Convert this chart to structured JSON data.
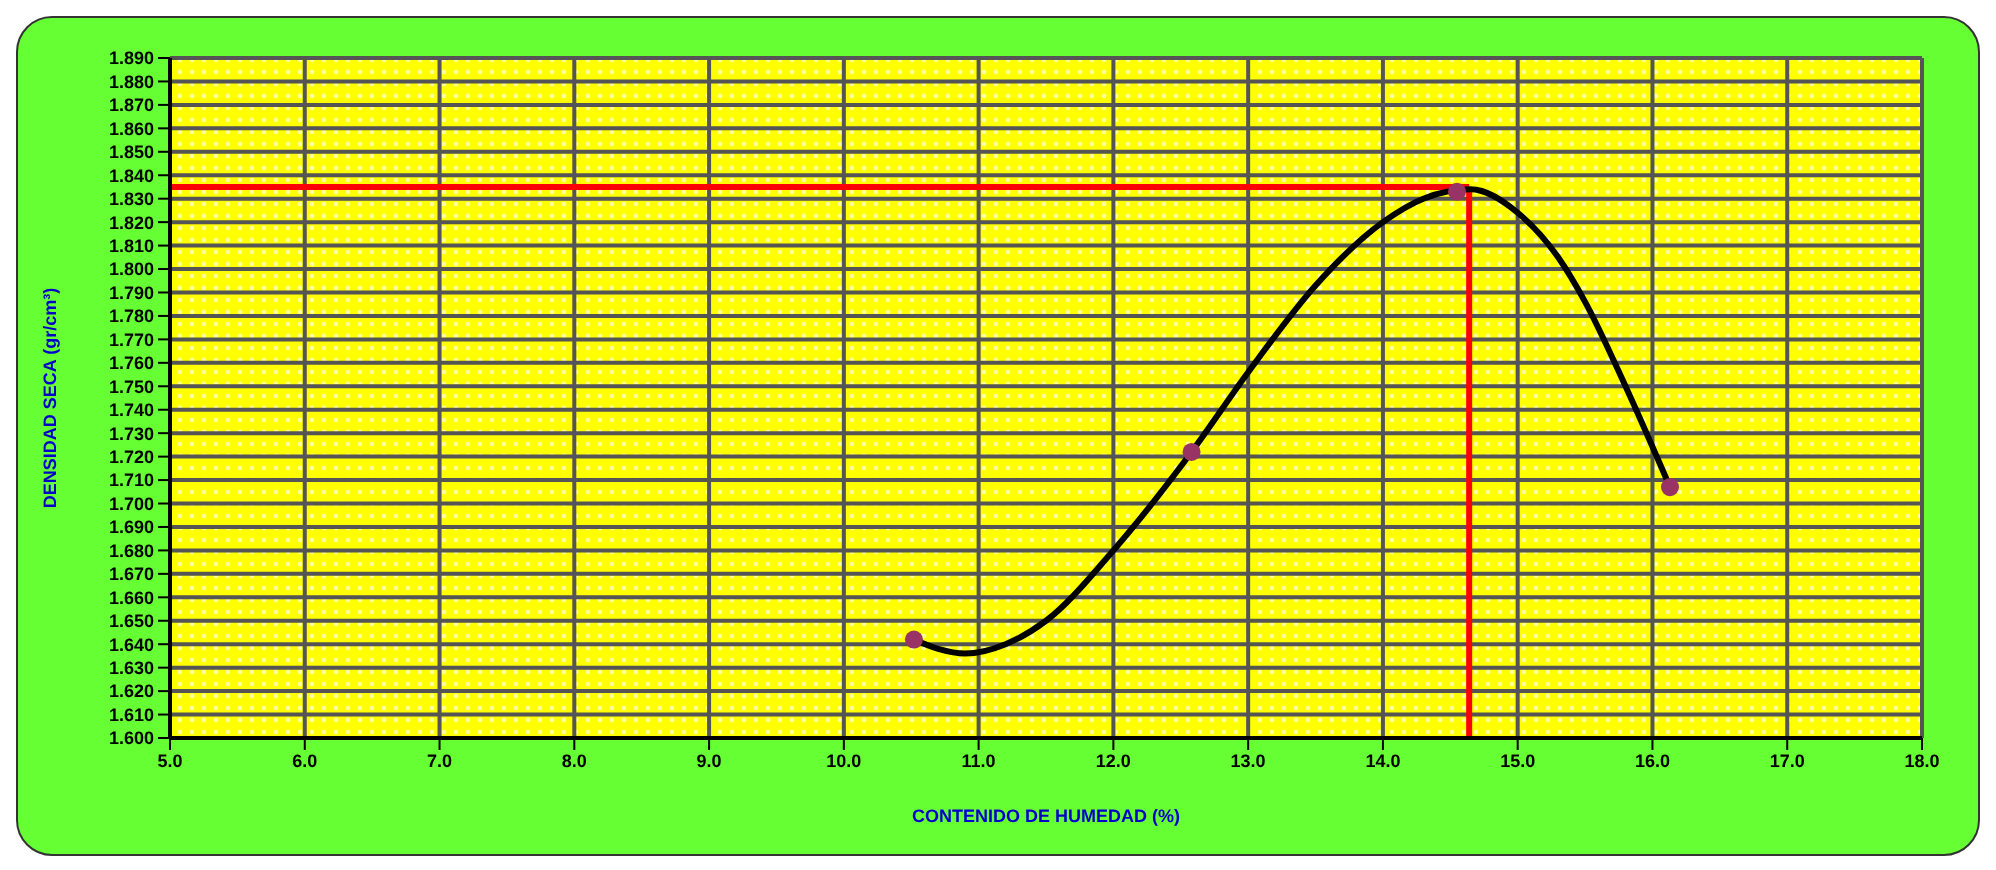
{
  "chart_data": {
    "type": "scatter",
    "xlabel": "CONTENIDO DE HUMEDAD (%)",
    "ylabel": "DENSIDAD SECA (gr/cm³)",
    "series": [
      {
        "color": "#993366",
        "marker": "circle",
        "x": [
          10.52,
          12.58,
          14.55,
          16.13
        ],
        "values": [
          1.642,
          1.722,
          1.833,
          1.707
        ]
      },
      {
        "type": "line",
        "marker": "none",
        "color": "#000000",
        "x": [
          10.52,
          10.7,
          10.9,
          11.2,
          11.5,
          12.0,
          12.58,
          13.0,
          13.5,
          14.0,
          14.3,
          14.65,
          15.0,
          15.3,
          15.5,
          15.8,
          16.13
        ],
        "values": [
          1.642,
          1.638,
          1.636,
          1.64,
          1.65,
          1.68,
          1.722,
          1.756,
          1.793,
          1.82,
          1.83,
          1.834,
          1.824,
          1.805,
          1.786,
          1.75,
          1.707
        ]
      }
    ],
    "ref_lines": [
      {
        "axis": "x",
        "value": 14.64,
        "color": "#ff0000"
      },
      {
        "axis": "y",
        "value": 1.835,
        "color": "#ff0000"
      }
    ],
    "xlim": [
      5,
      18
    ],
    "xticks": [
      {
        "value": 5,
        "label": "5.0"
      },
      {
        "value": 6,
        "label": "6.0"
      },
      {
        "value": 7,
        "label": "7.0"
      },
      {
        "value": 8,
        "label": "8.0"
      },
      {
        "value": 9,
        "label": "9.0"
      },
      {
        "value": 10,
        "label": "10.0"
      },
      {
        "value": 11,
        "label": "11.0"
      },
      {
        "value": 12,
        "label": "12.0"
      },
      {
        "value": 13,
        "label": "13.0"
      },
      {
        "value": 14,
        "label": "14.0"
      },
      {
        "value": 15,
        "label": "15.0"
      },
      {
        "value": 16,
        "label": "16.0"
      },
      {
        "value": 17,
        "label": "17.0"
      },
      {
        "value": 18,
        "label": "18.0"
      }
    ],
    "ylim": [
      1.6,
      1.89
    ],
    "yticks": [
      {
        "value": 1.6,
        "label": "1.600"
      },
      {
        "value": 1.61,
        "label": "1.610"
      },
      {
        "value": 1.62,
        "label": "1.620"
      },
      {
        "value": 1.63,
        "label": "1.630"
      },
      {
        "value": 1.64,
        "label": "1.640"
      },
      {
        "value": 1.65,
        "label": "1.650"
      },
      {
        "value": 1.66,
        "label": "1.660"
      },
      {
        "value": 1.67,
        "label": "1.670"
      },
      {
        "value": 1.68,
        "label": "1.680"
      },
      {
        "value": 1.69,
        "label": "1.690"
      },
      {
        "value": 1.7,
        "label": "1.700"
      },
      {
        "value": 1.71,
        "label": "1.710"
      },
      {
        "value": 1.72,
        "label": "1.720"
      },
      {
        "value": 1.73,
        "label": "1.730"
      },
      {
        "value": 1.74,
        "label": "1.740"
      },
      {
        "value": 1.75,
        "label": "1.750"
      },
      {
        "value": 1.76,
        "label": "1.760"
      },
      {
        "value": 1.77,
        "label": "1.770"
      },
      {
        "value": 1.78,
        "label": "1.780"
      },
      {
        "value": 1.79,
        "label": "1.790"
      },
      {
        "value": 1.8,
        "label": "1.800"
      },
      {
        "value": 1.81,
        "label": "1.810"
      },
      {
        "value": 1.82,
        "label": "1.820"
      },
      {
        "value": 1.83,
        "label": "1.830"
      },
      {
        "value": 1.84,
        "label": "1.840"
      },
      {
        "value": 1.85,
        "label": "1.850"
      },
      {
        "value": 1.86,
        "label": "1.860"
      },
      {
        "value": 1.87,
        "label": "1.870"
      },
      {
        "value": 1.88,
        "label": "1.880"
      },
      {
        "value": 1.89,
        "label": "1.890"
      }
    ],
    "grid": true,
    "line_style": "solid"
  }
}
